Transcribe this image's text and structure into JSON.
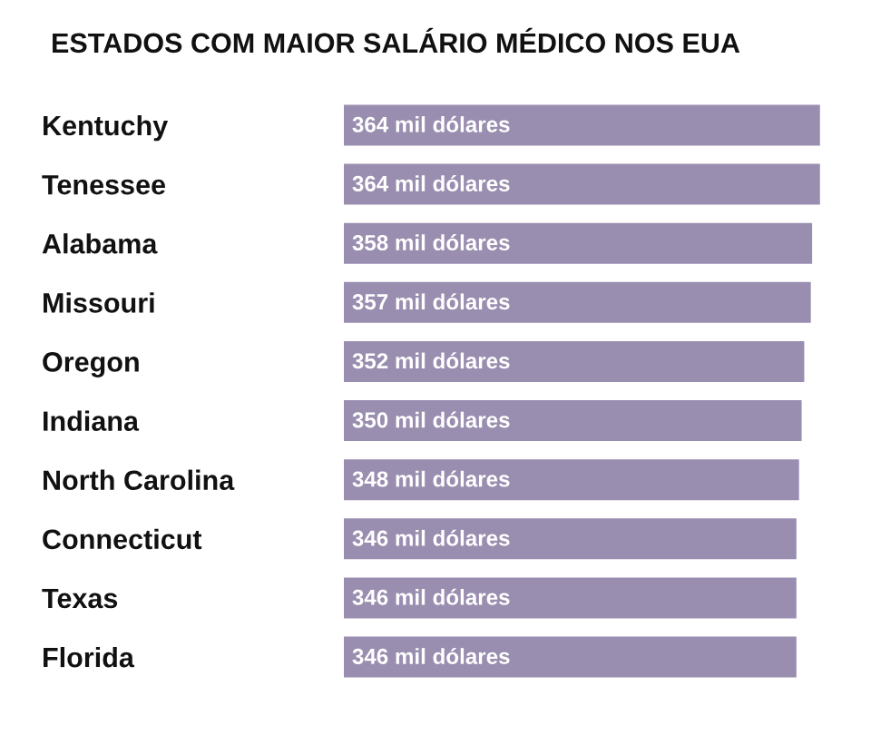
{
  "chart_data": {
    "type": "bar",
    "orientation": "horizontal",
    "title": "ESTADOS COM MAIOR SALÁRIO MÉDICO NOS EUA",
    "categories": [
      "Kentuchy",
      "Tenessee",
      "Alabama",
      "Missouri",
      "Oregon",
      "Indiana",
      "North Carolina",
      "Connecticut",
      "Texas",
      "Florida"
    ],
    "values": [
      364,
      364,
      358,
      357,
      352,
      350,
      348,
      346,
      346,
      346
    ],
    "value_labels": [
      "364 mil dólares",
      "364 mil dólares",
      "358 mil dólares",
      "357 mil dólares",
      "352 mil dólares",
      "350 mil dólares",
      "348 mil dólares",
      "346 mil dólares",
      "346 mil dólares",
      "346 mil dólares"
    ],
    "color": "#9a8eb0",
    "tick_labels": "y"
  }
}
